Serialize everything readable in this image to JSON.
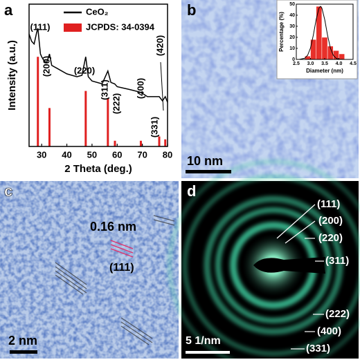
{
  "chart_data": [
    {
      "type": "line",
      "xlabel": "2 Theta (deg.)",
      "ylabel": "Intensity (a.u.)",
      "xlim": [
        25,
        80
      ],
      "xticks": [
        30,
        40,
        50,
        60,
        70,
        80
      ],
      "ylim": [
        0,
        100
      ],
      "series": [
        {
          "name": "CeO₂",
          "color": "#000000",
          "x": [
            25,
            26,
            27,
            28,
            28.5,
            29.5,
            30,
            31,
            32,
            33.1,
            34,
            36,
            40,
            44,
            46,
            47.5,
            48.5,
            50,
            54,
            56.3,
            57.5,
            59,
            60,
            65,
            69.4,
            72,
            76.7,
            78,
            79.1,
            80
          ],
          "values": [
            79,
            74,
            72,
            80,
            83,
            65,
            63,
            60,
            59,
            65,
            57,
            55,
            51,
            49,
            50,
            63,
            49,
            46,
            44,
            53,
            45,
            44,
            42,
            40,
            38,
            35,
            35,
            32,
            35,
            31
          ]
        },
        {
          "name": "JCPDS: 34-0394",
          "color": "#e02020",
          "type": "bar",
          "x": [
            28.5,
            33.1,
            47.5,
            56.3,
            59.1,
            69.4,
            76.7,
            79.1
          ],
          "values": [
            63,
            27,
            39,
            34,
            4,
            4,
            7,
            5
          ]
        }
      ],
      "annotations": [
        "(111)",
        "(200)",
        "(220)",
        "(311)",
        "(222)",
        "(400)",
        "(331)",
        "(420)"
      ]
    },
    {
      "type": "histogram",
      "xlabel": "Diameter (nm)",
      "ylabel": "Percentage (%)",
      "color": "#e8302a",
      "bins": [
        2.8,
        3.0,
        3.2,
        3.4,
        3.6,
        3.8,
        4.0,
        4.2
      ],
      "values": [
        3,
        18,
        48,
        20,
        12,
        8,
        5
      ],
      "xlim": [
        2.5,
        4.5
      ],
      "xticks": [
        2.5,
        {
          "value": 3,
          "label": "3.0"
        },
        3.5,
        {
          "value": 4,
          "label": "4.0"
        },
        4.5
      ],
      "ylim": [
        0,
        50
      ],
      "yticks": [
        0,
        10,
        20,
        30,
        40,
        50
      ],
      "fit": {
        "color": "#000000",
        "x": [
          2.6,
          2.8,
          2.9,
          3.0,
          3.1,
          3.2,
          3.3,
          3.35,
          3.4,
          3.5,
          3.6,
          3.7,
          3.8,
          3.9,
          4.0,
          4.2,
          4.4
        ],
        "values": [
          0,
          1.1,
          3.8,
          10.4,
          22,
          36.2,
          46.5,
          48,
          46.5,
          36.2,
          22,
          10.4,
          3.8,
          1.1,
          0.2,
          0,
          0
        ]
      }
    }
  ],
  "panels": {
    "a": {
      "label": "a"
    },
    "b": {
      "label": "b",
      "scale_bar": "10 nm"
    },
    "c": {
      "label": "c",
      "spacing": "0.16 nm",
      "plane": "(111)",
      "scale_bar": "2 nm"
    },
    "d": {
      "label": "d",
      "rings": [
        "(111)",
        "(200)",
        "(220)",
        "(311)",
        "(222)",
        "(400)",
        "(331)"
      ],
      "scale_bar": "5 1/nm"
    }
  }
}
